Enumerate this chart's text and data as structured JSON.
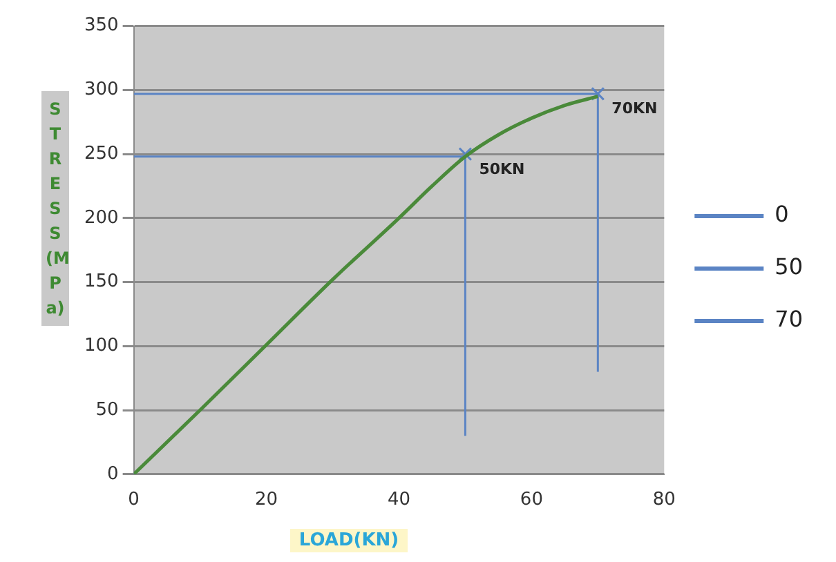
{
  "chart_data": {
    "type": "line",
    "xlabel": "LOAD(KN)",
    "ylabel": "STRESS(MPa)",
    "xlim": [
      0,
      80
    ],
    "xticks": [
      0,
      20,
      40,
      60,
      80
    ],
    "ylim": [
      0,
      350
    ],
    "yticks": [
      0,
      50,
      100,
      150,
      200,
      250,
      300,
      350
    ],
    "grid": "y",
    "legend": "right",
    "series": [
      {
        "type": "line",
        "color": "#4a8a3a",
        "marker": "none",
        "x": [
          0,
          10,
          20,
          30,
          40,
          45,
          50,
          55,
          60,
          65,
          70
        ],
        "values": [
          0,
          50,
          101,
          152,
          200,
          225,
          248,
          265,
          278,
          288,
          295
        ]
      },
      {
        "type": "scatter",
        "name": "0",
        "color": "#5b84c4",
        "marker": "cross",
        "x": [
          0
        ],
        "values": [
          0
        ]
      },
      {
        "type": "line",
        "name": "50",
        "color": "#5b84c4",
        "marker": "none",
        "x": [
          0,
          50,
          50
        ],
        "values": [
          248,
          248,
          30
        ]
      },
      {
        "type": "line",
        "name": "70",
        "color": "#5b84c4",
        "marker": "none",
        "x": [
          0,
          70,
          70
        ],
        "values": [
          297,
          297,
          80
        ]
      },
      {
        "type": "scatter",
        "color": "#5b84c4",
        "marker": "cross",
        "x": [
          50,
          70
        ],
        "values": [
          250,
          297
        ]
      }
    ],
    "annotations": [
      {
        "text": "50KN",
        "x": 50,
        "y": 248
      },
      {
        "text": "70KN",
        "x": 70,
        "y": 295
      }
    ]
  }
}
